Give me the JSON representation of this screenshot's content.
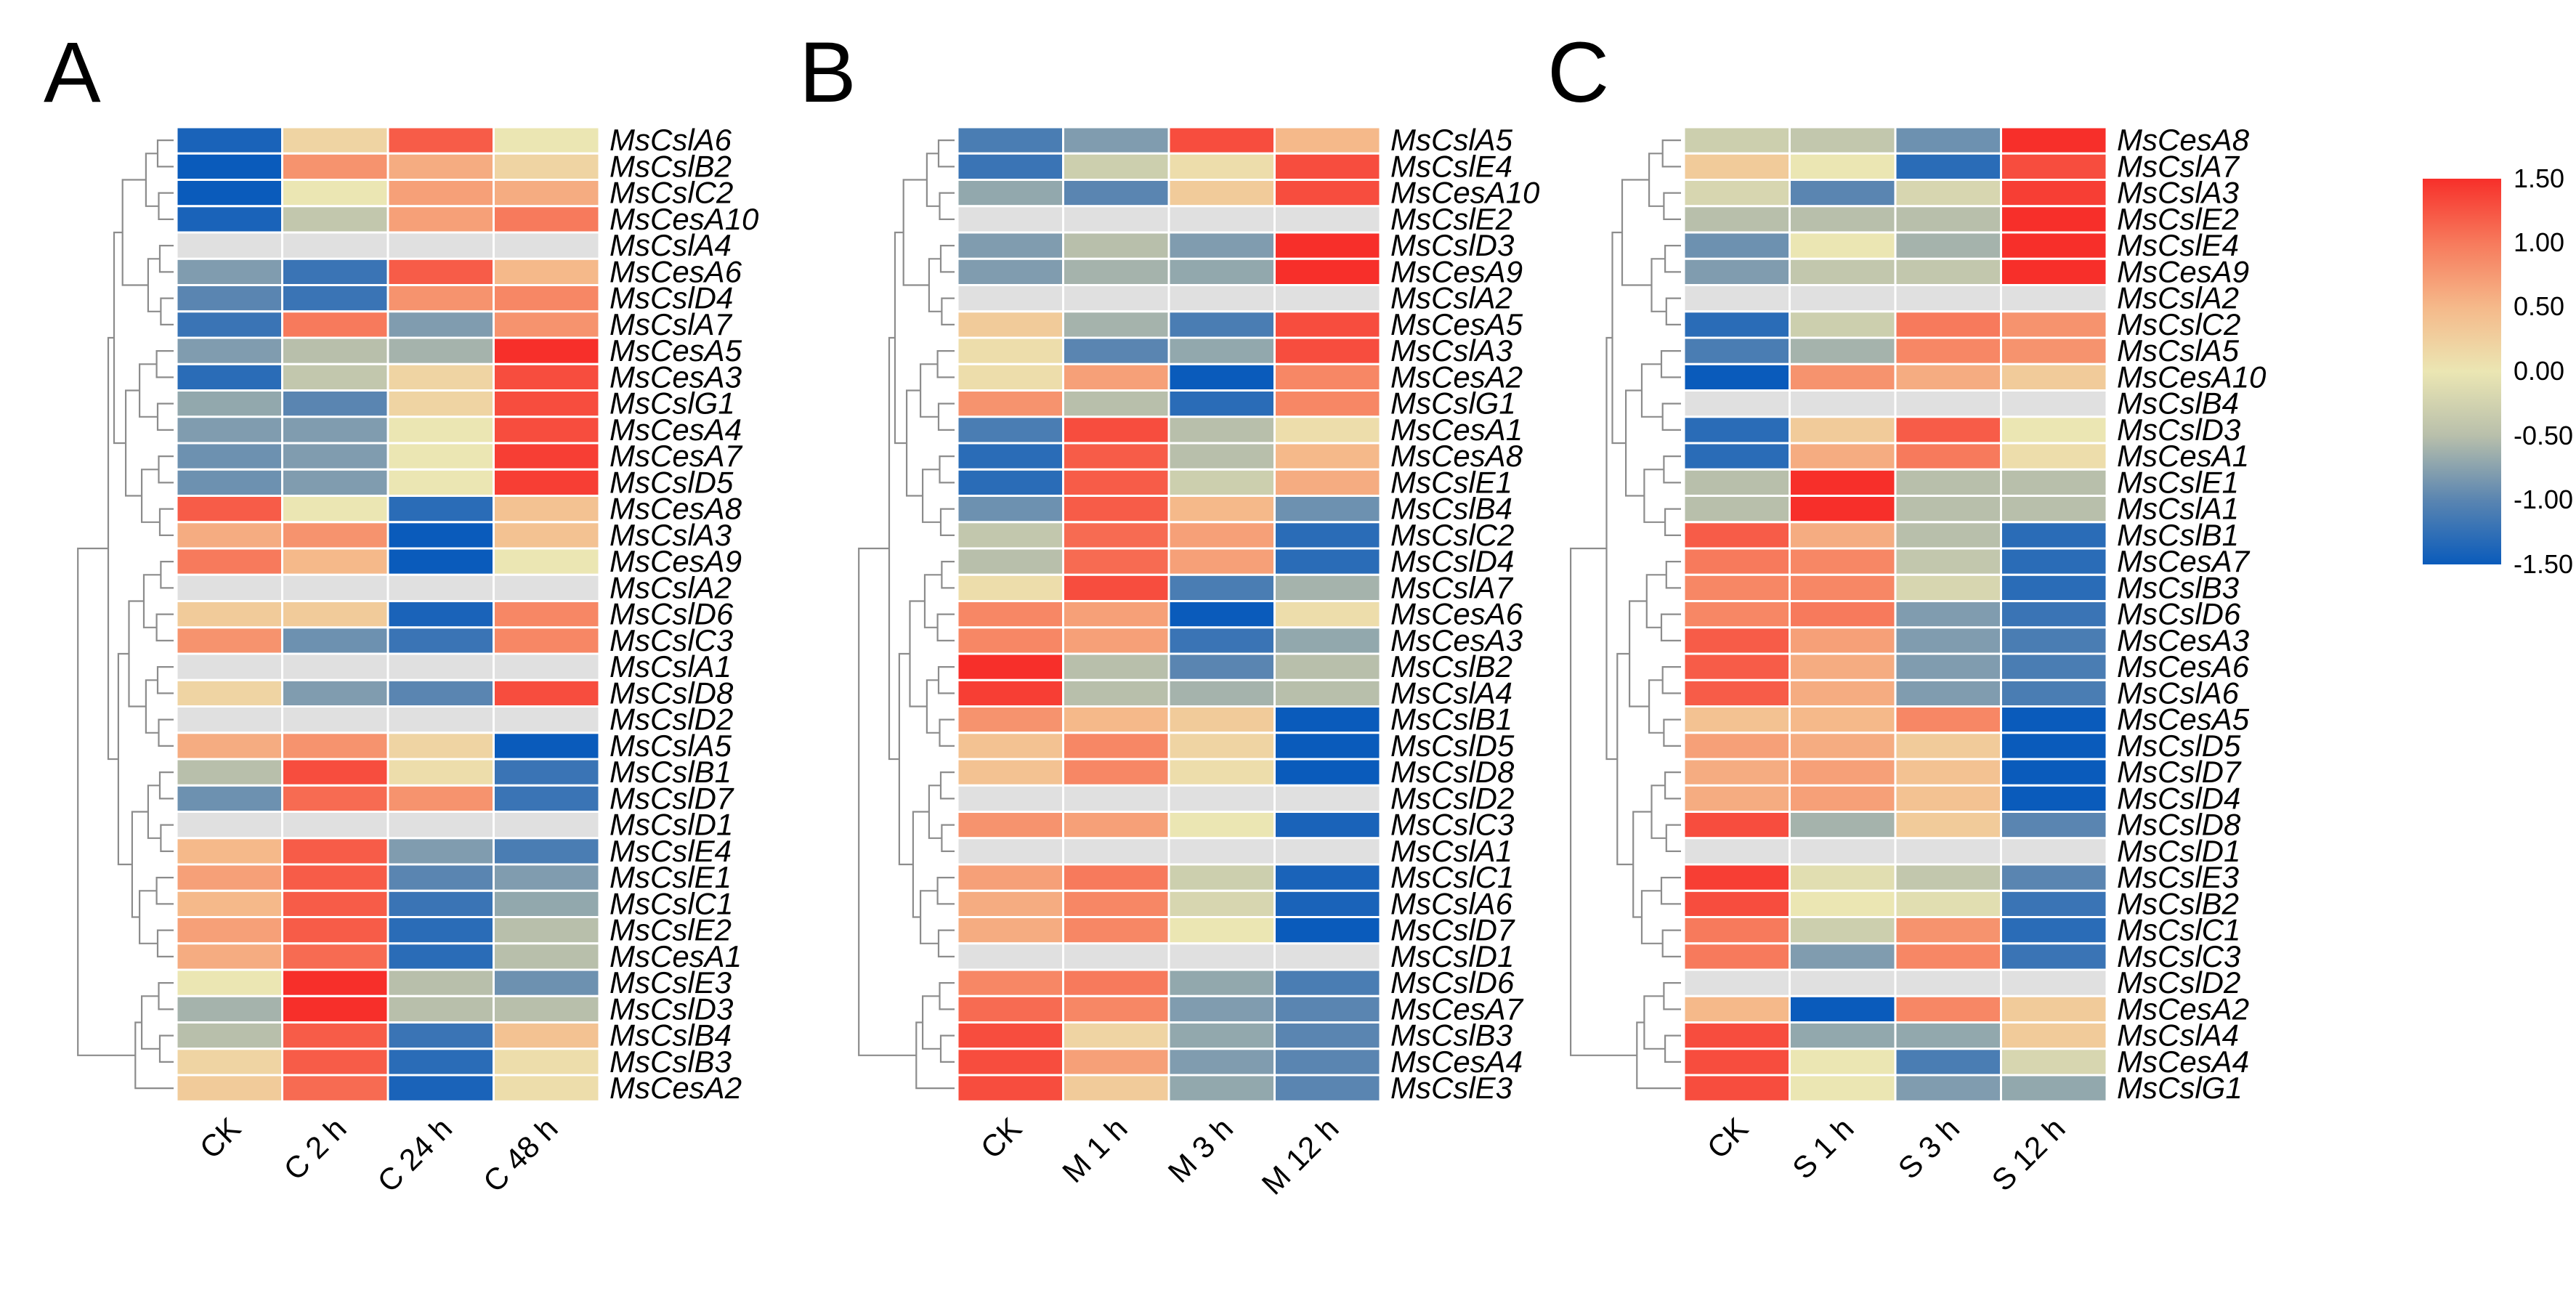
{
  "legend": {
    "ticks": [
      "1.50",
      "1.00",
      "0.50",
      "0.00",
      "-0.50",
      "-1.00",
      "-1.50"
    ],
    "min": -1.5,
    "max": 1.5,
    "colors": {
      "low": "#0a5bbb",
      "mid": "#ebe6b3",
      "high": "#f72f2a",
      "missing": "#e0e0e0"
    }
  },
  "chart_data": [
    {
      "type": "heatmap",
      "panel": "A",
      "columns": [
        "CK",
        "C 2 h",
        "C 24 h",
        "C 48 h"
      ],
      "rows": [
        "MsCslA6",
        "MsCslB2",
        "MsCslC2",
        "MsCesA10",
        "MsCslA4",
        "MsCesA6",
        "MsCslD4",
        "MsCslA7",
        "MsCesA5",
        "MsCesA3",
        "MsCslG1",
        "MsCesA4",
        "MsCesA7",
        "MsCslD5",
        "MsCesA8",
        "MsCslA3",
        "MsCesA9",
        "MsCslA2",
        "MsCslD6",
        "MsCslC3",
        "MsCslA1",
        "MsCslD8",
        "MsCslD2",
        "MsCslA5",
        "MsCslB1",
        "MsCslD7",
        "MsCslD1",
        "MsCslE4",
        "MsCslE1",
        "MsCslC1",
        "MsCslE2",
        "MsCesA1",
        "MsCslE3",
        "MsCslD3",
        "MsCslB4",
        "MsCslB3",
        "MsCesA2"
      ],
      "values": [
        [
          -1.4,
          0.2,
          1.2,
          0.0
        ],
        [
          -1.5,
          0.8,
          0.6,
          0.2
        ],
        [
          -1.5,
          0.0,
          0.7,
          0.6
        ],
        [
          -1.4,
          -0.4,
          0.7,
          1.0
        ],
        [
          null,
          null,
          null,
          null
        ],
        [
          -0.8,
          -1.2,
          1.2,
          0.5
        ],
        [
          -1.0,
          -1.2,
          0.8,
          0.9
        ],
        [
          -1.2,
          1.0,
          -0.8,
          0.8
        ],
        [
          -0.8,
          -0.5,
          -0.6,
          1.5
        ],
        [
          -1.3,
          -0.4,
          0.2,
          1.3
        ],
        [
          -0.7,
          -1.0,
          0.2,
          1.3
        ],
        [
          -0.8,
          -0.8,
          0.0,
          1.3
        ],
        [
          -0.9,
          -0.8,
          0.0,
          1.4
        ],
        [
          -0.9,
          -0.8,
          0.0,
          1.4
        ],
        [
          1.2,
          0.0,
          -1.3,
          0.4
        ],
        [
          0.6,
          0.8,
          -1.5,
          0.4
        ],
        [
          1.0,
          0.5,
          -1.5,
          0.0
        ],
        [
          null,
          null,
          null,
          null
        ],
        [
          0.3,
          0.3,
          -1.4,
          0.9
        ],
        [
          0.8,
          -0.9,
          -1.2,
          0.9
        ],
        [
          null,
          null,
          null,
          null
        ],
        [
          0.2,
          -0.8,
          -1.0,
          1.3
        ],
        [
          null,
          null,
          null,
          null
        ],
        [
          0.6,
          0.8,
          0.2,
          -1.5
        ],
        [
          -0.5,
          1.3,
          0.1,
          -1.2
        ],
        [
          -0.9,
          1.1,
          0.8,
          -1.2
        ],
        [
          null,
          null,
          null,
          null
        ],
        [
          0.5,
          1.2,
          -0.8,
          -1.1
        ],
        [
          0.7,
          1.2,
          -1.0,
          -0.8
        ],
        [
          0.5,
          1.2,
          -1.2,
          -0.7
        ],
        [
          0.7,
          1.2,
          -1.3,
          -0.5
        ],
        [
          0.6,
          1.1,
          -1.3,
          -0.5
        ],
        [
          0.0,
          1.5,
          -0.5,
          -0.9
        ],
        [
          -0.6,
          1.5,
          -0.5,
          -0.5
        ],
        [
          -0.5,
          1.2,
          -1.2,
          0.4
        ],
        [
          0.2,
          1.2,
          -1.3,
          0.1
        ],
        [
          0.3,
          1.1,
          -1.4,
          0.1
        ]
      ]
    },
    {
      "type": "heatmap",
      "panel": "B",
      "columns": [
        "CK",
        "M 1 h",
        "M 3 h",
        "M 12 h"
      ],
      "rows": [
        "MsCslA5",
        "MsCslE4",
        "MsCesA10",
        "MsCslE2",
        "MsCslD3",
        "MsCesA9",
        "MsCslA2",
        "MsCesA5",
        "MsCslA3",
        "MsCesA2",
        "MsCslG1",
        "MsCesA1",
        "MsCesA8",
        "MsCslE1",
        "MsCslB4",
        "MsCslC2",
        "MsCslD4",
        "MsCslA7",
        "MsCesA6",
        "MsCesA3",
        "MsCslB2",
        "MsCslA4",
        "MsCslB1",
        "MsCslD5",
        "MsCslD8",
        "MsCslD2",
        "MsCslC3",
        "MsCslA1",
        "MsCslC1",
        "MsCslA6",
        "MsCslD7",
        "MsCslD1",
        "MsCslD6",
        "MsCesA7",
        "MsCslB3",
        "MsCesA4",
        "MsCslE3"
      ],
      "values": [
        [
          -1.1,
          -0.8,
          1.3,
          0.5
        ],
        [
          -1.2,
          -0.3,
          0.1,
          1.3
        ],
        [
          -0.7,
          -1.0,
          0.3,
          1.3
        ],
        [
          null,
          null,
          null,
          null
        ],
        [
          -0.8,
          -0.5,
          -0.8,
          1.5
        ],
        [
          -0.8,
          -0.6,
          -0.7,
          1.5
        ],
        [
          null,
          null,
          null,
          null
        ],
        [
          0.3,
          -0.6,
          -1.1,
          1.3
        ],
        [
          0.1,
          -1.0,
          -0.7,
          1.3
        ],
        [
          0.1,
          0.7,
          -1.5,
          0.9
        ],
        [
          0.8,
          -0.5,
          -1.3,
          0.9
        ],
        [
          -1.1,
          1.3,
          -0.5,
          0.1
        ],
        [
          -1.3,
          1.2,
          -0.5,
          0.5
        ],
        [
          -1.3,
          1.2,
          -0.3,
          0.6
        ],
        [
          -0.9,
          1.2,
          0.5,
          -0.9
        ],
        [
          -0.4,
          1.1,
          0.7,
          -1.3
        ],
        [
          -0.5,
          1.1,
          0.7,
          -1.3
        ],
        [
          0.1,
          1.3,
          -1.1,
          -0.6
        ],
        [
          0.9,
          0.7,
          -1.5,
          0.1
        ],
        [
          0.9,
          0.7,
          -1.2,
          -0.7
        ],
        [
          1.5,
          -0.5,
          -1.0,
          -0.5
        ],
        [
          1.4,
          -0.5,
          -0.6,
          -0.5
        ],
        [
          0.8,
          0.5,
          0.3,
          -1.5
        ],
        [
          0.4,
          0.9,
          0.2,
          -1.5
        ],
        [
          0.4,
          0.9,
          0.1,
          -1.5
        ],
        [
          null,
          null,
          null,
          null
        ],
        [
          0.8,
          0.7,
          0.0,
          -1.4
        ],
        [
          null,
          null,
          null,
          null
        ],
        [
          0.7,
          1.0,
          -0.3,
          -1.4
        ],
        [
          0.6,
          0.9,
          -0.2,
          -1.4
        ],
        [
          0.6,
          0.9,
          0.0,
          -1.5
        ],
        [
          null,
          null,
          null,
          null
        ],
        [
          0.9,
          1.0,
          -0.7,
          -1.1
        ],
        [
          1.1,
          0.9,
          -0.8,
          -1.0
        ],
        [
          1.3,
          0.2,
          -0.7,
          -1.0
        ],
        [
          1.3,
          0.7,
          -0.8,
          -1.0
        ],
        [
          1.3,
          0.3,
          -0.7,
          -1.0
        ]
      ]
    },
    {
      "type": "heatmap",
      "panel": "C",
      "columns": [
        "CK",
        "S 1 h",
        "S 3 h",
        "S 12 h"
      ],
      "rows": [
        "MsCesA8",
        "MsCslA7",
        "MsCslA3",
        "MsCslE2",
        "MsCslE4",
        "MsCesA9",
        "MsCslA2",
        "MsCslC2",
        "MsCslA5",
        "MsCesA10",
        "MsCslB4",
        "MsCslD3",
        "MsCesA1",
        "MsCslE1",
        "MsCslA1",
        "MsCslB1",
        "MsCesA7",
        "MsCslB3",
        "MsCslD6",
        "MsCesA3",
        "MsCesA6",
        "MsCslA6",
        "MsCesA5",
        "MsCslD5",
        "MsCslD7",
        "MsCslD4",
        "MsCslD8",
        "MsCslD1",
        "MsCslE3",
        "MsCslB2",
        "MsCslC1",
        "MsCslC3",
        "MsCslD2",
        "MsCesA2",
        "MsCslA4",
        "MsCesA4",
        "MsCslG1"
      ],
      "values": [
        [
          -0.3,
          -0.4,
          -0.9,
          1.5
        ],
        [
          0.3,
          0.0,
          -1.3,
          1.3
        ],
        [
          -0.2,
          -1.0,
          -0.2,
          1.4
        ],
        [
          -0.5,
          -0.5,
          -0.5,
          1.5
        ],
        [
          -0.9,
          0.0,
          -0.6,
          1.5
        ],
        [
          -0.8,
          -0.4,
          -0.4,
          1.5
        ],
        [
          null,
          null,
          null,
          null
        ],
        [
          -1.3,
          -0.3,
          1.0,
          0.8
        ],
        [
          -1.1,
          -0.6,
          0.9,
          0.8
        ],
        [
          -1.5,
          0.8,
          0.6,
          0.3
        ],
        [
          null,
          null,
          null,
          null
        ],
        [
          -1.3,
          0.3,
          1.2,
          0.0
        ],
        [
          -1.3,
          0.6,
          1.0,
          0.1
        ],
        [
          -0.5,
          1.5,
          -0.5,
          -0.5
        ],
        [
          -0.5,
          1.5,
          -0.5,
          -0.5
        ],
        [
          1.2,
          0.6,
          -0.5,
          -1.3
        ],
        [
          1.0,
          0.9,
          -0.4,
          -1.3
        ],
        [
          0.9,
          0.9,
          -0.2,
          -1.3
        ],
        [
          0.9,
          1.0,
          -0.8,
          -1.2
        ],
        [
          1.2,
          0.7,
          -0.8,
          -1.1
        ],
        [
          1.2,
          0.6,
          -0.8,
          -1.1
        ],
        [
          1.2,
          0.6,
          -0.8,
          -1.1
        ],
        [
          0.4,
          0.5,
          0.9,
          -1.5
        ],
        [
          0.7,
          0.6,
          0.3,
          -1.5
        ],
        [
          0.6,
          0.7,
          0.4,
          -1.5
        ],
        [
          0.6,
          0.7,
          0.4,
          -1.5
        ],
        [
          1.3,
          -0.6,
          0.3,
          -1.0
        ],
        [
          null,
          null,
          null,
          null
        ],
        [
          1.4,
          -0.1,
          -0.4,
          -1.0
        ],
        [
          1.3,
          0.0,
          -0.1,
          -1.2
        ],
        [
          1.0,
          -0.3,
          0.8,
          -1.3
        ],
        [
          1.0,
          -0.8,
          0.9,
          -1.2
        ],
        [
          null,
          null,
          null,
          null
        ],
        [
          0.5,
          -1.5,
          0.9,
          0.3
        ],
        [
          1.3,
          -0.7,
          -0.7,
          0.3
        ],
        [
          1.3,
          0.0,
          -1.1,
          -0.2
        ],
        [
          1.3,
          0.0,
          -0.8,
          -0.7
        ]
      ]
    }
  ]
}
